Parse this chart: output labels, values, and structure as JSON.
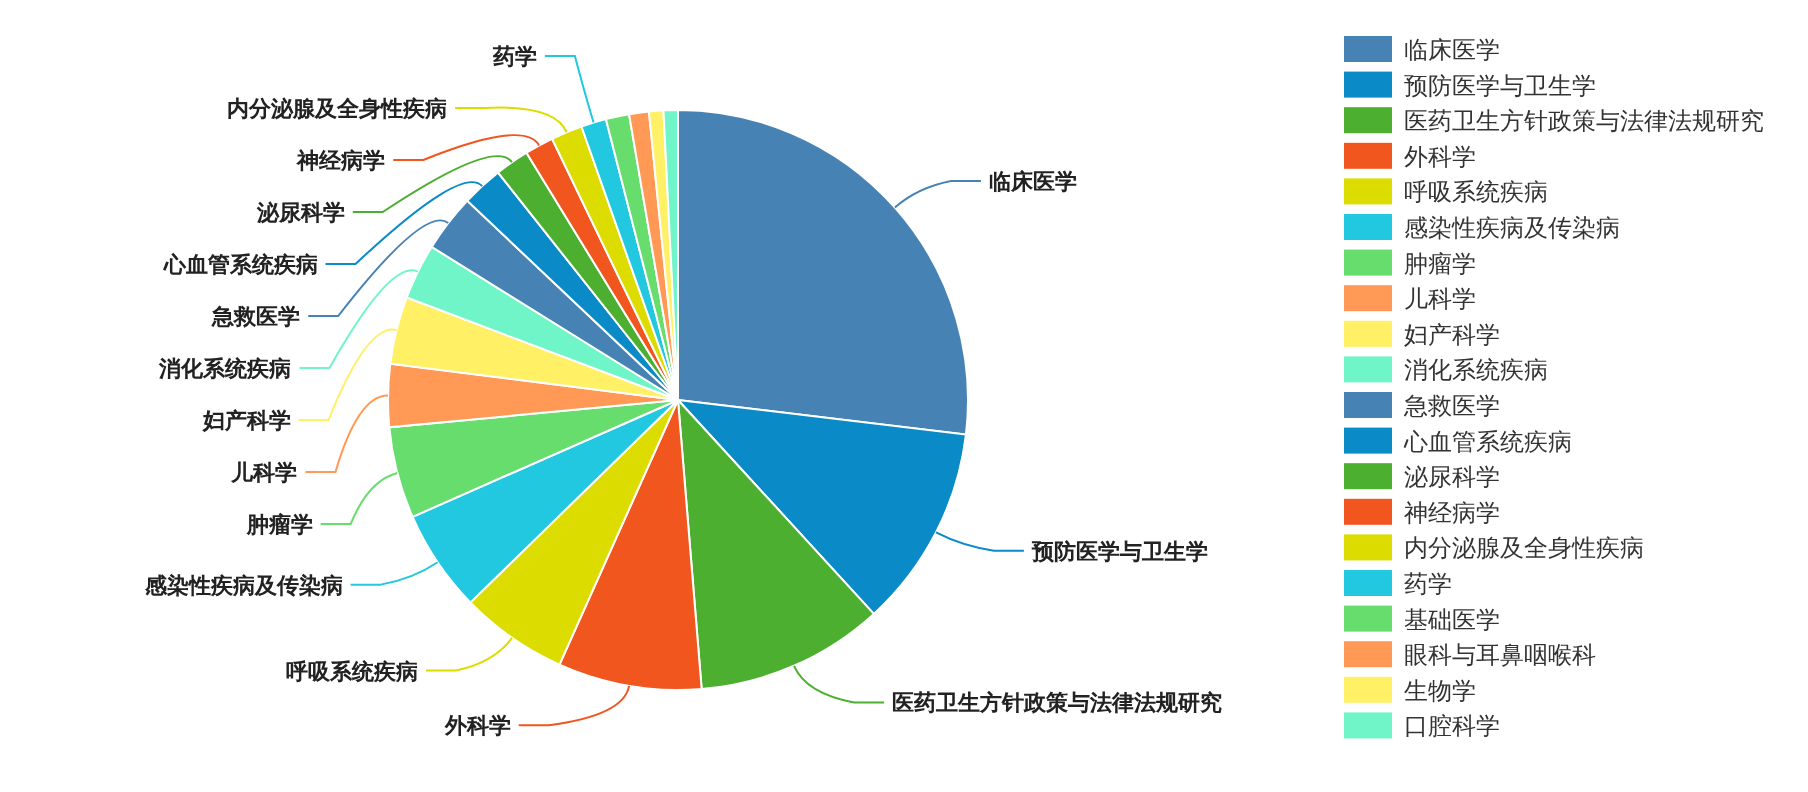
{
  "chart_data": {
    "type": "pie",
    "legend": "top right",
    "categories": [
      "临床医学",
      "预防医学与卫生学",
      "医药卫生方针政策与法律法规研究",
      "外科学",
      "呼吸系统疾病",
      "感染性疾病及传染病",
      "肿瘤学",
      "儿科学",
      "妇产科学",
      "消化系统疾病",
      "急救医学",
      "心血管系统疾病",
      "泌尿科学",
      "神经病学",
      "内分泌腺及全身性疾病",
      "药学",
      "基础医学",
      "眼科与耳鼻咽喉科",
      "生物学",
      "口腔科学"
    ],
    "values": [
      26.9,
      11.3,
      10.5,
      8,
      6,
      5.7,
      5.1,
      3.5,
      3.75,
      3.1,
      3.2,
      2.3,
      1.9,
      1.6,
      1.75,
      1.4,
      1.3,
      1.1,
      0.8,
      0.8
    ],
    "colors": [
      "#4682b4",
      "#0a8ac6",
      "#4daf30",
      "#f0561e",
      "#dcdc00",
      "#22c7e0",
      "#66dd6c",
      "#ff9955",
      "#fff066",
      "#70f5c8",
      "#4682b4",
      "#0a8ac6",
      "#4daf30",
      "#f0561e",
      "#dcdc00",
      "#22c7e0",
      "#66dd6c",
      "#ff9955",
      "#fff066",
      "#70f5c8"
    ]
  }
}
